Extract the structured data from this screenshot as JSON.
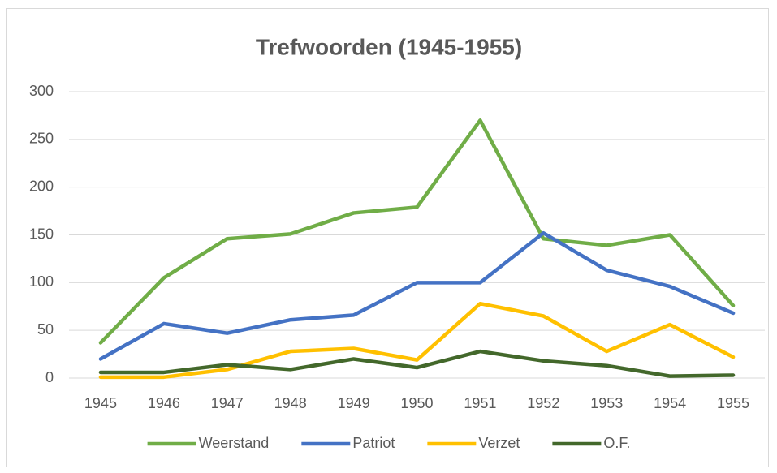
{
  "chart_data": {
    "type": "line",
    "title": "Trefwoorden (1945-1955)",
    "categories": [
      "1945",
      "1946",
      "1947",
      "1948",
      "1949",
      "1950",
      "1951",
      "1952",
      "1953",
      "1954",
      "1955"
    ],
    "series": [
      {
        "name": "Weerstand",
        "color": "#70ad47",
        "values": [
          37,
          105,
          146,
          151,
          173,
          179,
          270,
          146,
          139,
          150,
          76
        ]
      },
      {
        "name": "Patriot",
        "color": "#4472c4",
        "values": [
          20,
          57,
          47,
          61,
          66,
          100,
          100,
          152,
          113,
          96,
          68
        ]
      },
      {
        "name": "Verzet",
        "color": "#ffc000",
        "values": [
          1,
          1,
          9,
          28,
          31,
          19,
          78,
          65,
          28,
          56,
          22
        ]
      },
      {
        "name": "O.F.",
        "color": "#43682b",
        "values": [
          6,
          6,
          14,
          9,
          20,
          11,
          28,
          18,
          13,
          2,
          3
        ]
      }
    ],
    "ylim": [
      0,
      300
    ],
    "yticks": [
      0,
      50,
      100,
      150,
      200,
      250,
      300
    ],
    "grid": true,
    "legend": "bottom"
  }
}
